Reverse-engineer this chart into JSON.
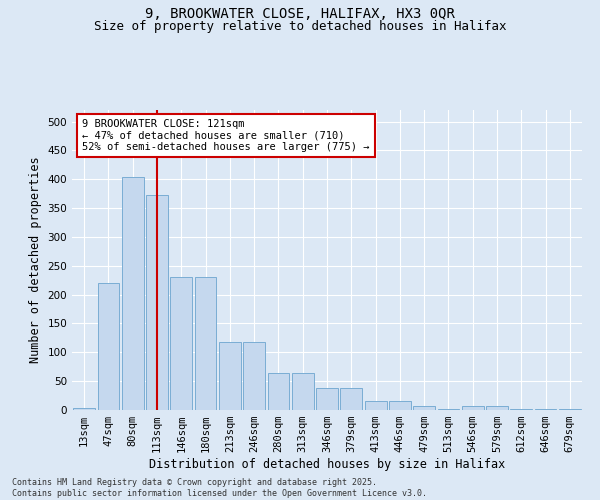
{
  "title1": "9, BROOKWATER CLOSE, HALIFAX, HX3 0QR",
  "title2": "Size of property relative to detached houses in Halifax",
  "xlabel": "Distribution of detached houses by size in Halifax",
  "ylabel": "Number of detached properties",
  "categories": [
    "13sqm",
    "47sqm",
    "80sqm",
    "113sqm",
    "146sqm",
    "180sqm",
    "213sqm",
    "246sqm",
    "280sqm",
    "313sqm",
    "346sqm",
    "379sqm",
    "413sqm",
    "446sqm",
    "479sqm",
    "513sqm",
    "546sqm",
    "579sqm",
    "612sqm",
    "646sqm",
    "679sqm"
  ],
  "values": [
    3,
    220,
    403,
    373,
    230,
    230,
    118,
    118,
    65,
    65,
    38,
    38,
    16,
    16,
    7,
    2,
    7,
    7,
    1,
    1,
    1
  ],
  "bar_color": "#c5d8ee",
  "bar_edge_color": "#7aadd4",
  "vline_x": 3,
  "vline_color": "#cc0000",
  "annotation_text": "9 BROOKWATER CLOSE: 121sqm\n← 47% of detached houses are smaller (710)\n52% of semi-detached houses are larger (775) →",
  "annotation_box_color": "#ffffff",
  "annotation_box_edge": "#cc0000",
  "ylim": [
    0,
    520
  ],
  "yticks": [
    0,
    50,
    100,
    150,
    200,
    250,
    300,
    350,
    400,
    450,
    500
  ],
  "background_color": "#dce8f5",
  "footer": "Contains HM Land Registry data © Crown copyright and database right 2025.\nContains public sector information licensed under the Open Government Licence v3.0.",
  "title_fontsize": 10,
  "subtitle_fontsize": 9,
  "axis_label_fontsize": 8.5,
  "tick_fontsize": 7.5,
  "footer_fontsize": 6
}
